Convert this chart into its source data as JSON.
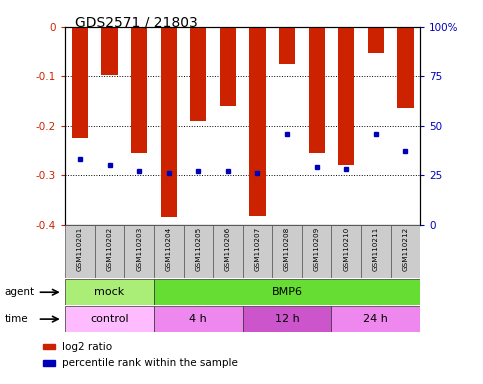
{
  "title": "GDS2571 / 21803",
  "samples": [
    "GSM110201",
    "GSM110202",
    "GSM110203",
    "GSM110204",
    "GSM110205",
    "GSM110206",
    "GSM110207",
    "GSM110208",
    "GSM110209",
    "GSM110210",
    "GSM110211",
    "GSM110212"
  ],
  "log2_ratio": [
    -0.225,
    -0.097,
    -0.255,
    -0.385,
    -0.19,
    -0.16,
    -0.382,
    -0.075,
    -0.255,
    -0.28,
    -0.052,
    -0.165
  ],
  "percentile_pct": [
    33,
    30,
    27,
    26,
    27,
    27,
    26,
    46,
    29,
    28,
    46,
    37
  ],
  "ylim_left": [
    -0.4,
    0.0
  ],
  "ylim_right": [
    0,
    100
  ],
  "yticks_left": [
    0.0,
    -0.1,
    -0.2,
    -0.3,
    -0.4
  ],
  "ytick_labels_left": [
    "0",
    "-0.1",
    "-0.2",
    "-0.3",
    "-0.4"
  ],
  "yticks_right": [
    100,
    75,
    50,
    25,
    0
  ],
  "ytick_labels_right": [
    "100%",
    "75",
    "50",
    "25",
    "0"
  ],
  "bar_color": "#cc2200",
  "dot_color": "#0000bb",
  "tick_label_color_left": "#cc2200",
  "tick_label_color_right": "#0000bb",
  "agent_groups": [
    {
      "label": "mock",
      "start": 0,
      "end": 3,
      "color": "#aaee77"
    },
    {
      "label": "BMP6",
      "start": 3,
      "end": 12,
      "color": "#66dd33"
    }
  ],
  "time_groups": [
    {
      "label": "control",
      "start": 0,
      "end": 3,
      "color": "#ffbbff"
    },
    {
      "label": "4 h",
      "start": 3,
      "end": 6,
      "color": "#ee88ee"
    },
    {
      "label": "12 h",
      "start": 6,
      "end": 9,
      "color": "#cc55cc"
    },
    {
      "label": "24 h",
      "start": 9,
      "end": 12,
      "color": "#ee88ee"
    }
  ],
  "legend_items": [
    {
      "label": "log2 ratio",
      "color": "#cc2200"
    },
    {
      "label": "percentile rank within the sample",
      "color": "#0000bb"
    }
  ],
  "agent_label": "agent",
  "time_label": "time",
  "figsize": [
    4.83,
    3.84
  ],
  "dpi": 100
}
